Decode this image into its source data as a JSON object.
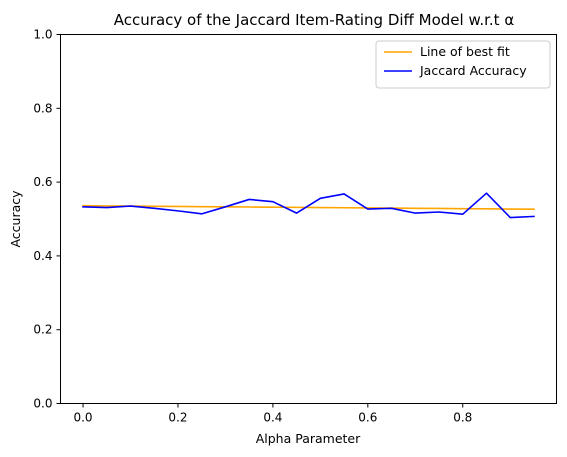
{
  "chart_data": {
    "type": "line",
    "title": "Accuracy of the Jaccard Item-Rating Diff Model w.r.t α",
    "xlabel": "Alpha Parameter",
    "ylabel": "Accuracy",
    "xlim": [
      -0.0475,
      0.9975
    ],
    "ylim": [
      0.0,
      1.0
    ],
    "x_ticks": [
      0.0,
      0.2,
      0.4,
      0.6,
      0.8
    ],
    "x_tick_labels": [
      "0.0",
      "0.2",
      "0.4",
      "0.6",
      "0.8"
    ],
    "y_ticks": [
      0.0,
      0.2,
      0.4,
      0.6,
      0.8,
      1.0
    ],
    "y_tick_labels": [
      "0.0",
      "0.2",
      "0.4",
      "0.6",
      "0.8",
      "1.0"
    ],
    "grid": false,
    "legend_position": "top-right",
    "x": [
      0.0,
      0.05,
      0.1,
      0.15,
      0.2,
      0.25,
      0.3,
      0.35,
      0.4,
      0.45,
      0.5,
      0.55,
      0.6,
      0.65,
      0.7,
      0.75,
      0.8,
      0.85,
      0.9,
      0.95
    ],
    "series": [
      {
        "name": "Line of best fit",
        "color": "#ffa500",
        "values": [
          0.536,
          0.5355,
          0.535,
          0.5345,
          0.534,
          0.5335,
          0.533,
          0.5325,
          0.532,
          0.5315,
          0.531,
          0.5305,
          0.53,
          0.5295,
          0.529,
          0.5285,
          0.528,
          0.5275,
          0.527,
          0.5265
        ]
      },
      {
        "name": "Jaccard Accuracy",
        "color": "#0000ff",
        "values": [
          0.533,
          0.531,
          0.535,
          0.529,
          0.522,
          0.514,
          0.533,
          0.553,
          0.547,
          0.516,
          0.556,
          0.568,
          0.527,
          0.529,
          0.516,
          0.519,
          0.513,
          0.57,
          0.504,
          0.507
        ]
      }
    ]
  }
}
